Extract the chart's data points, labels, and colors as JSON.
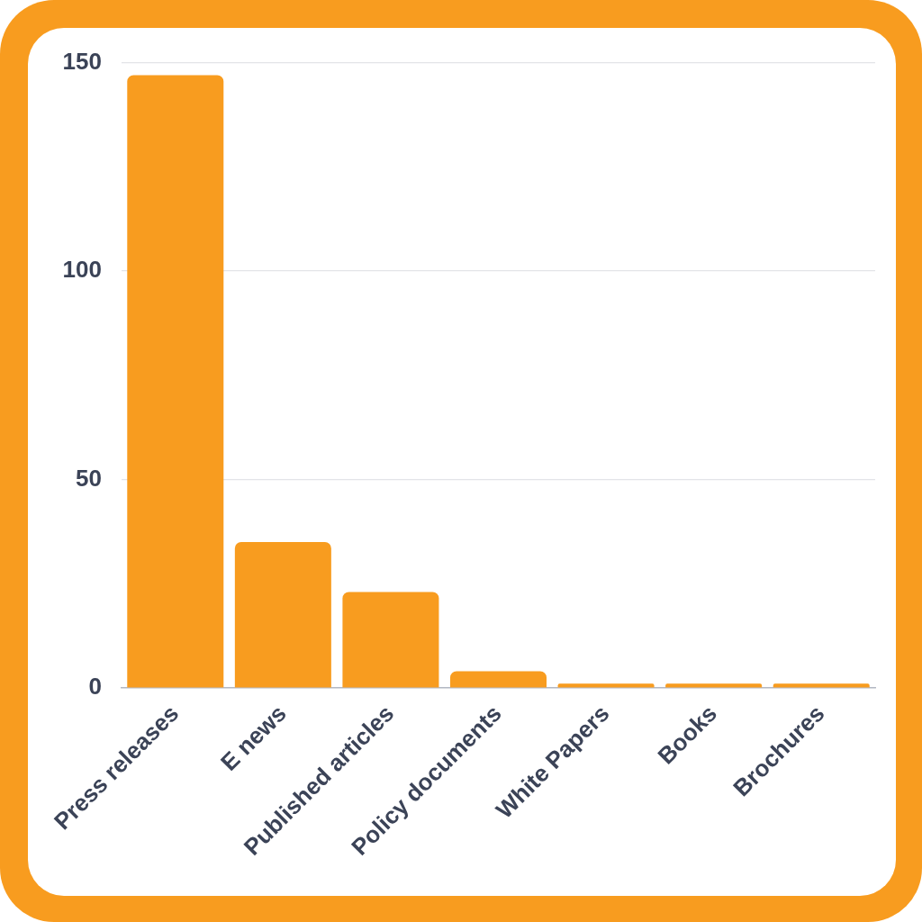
{
  "chart_data": {
    "type": "bar",
    "categories": [
      "Press releases",
      "E news",
      "Published articles",
      "Policy documents",
      "White Papers",
      "Books",
      "Brochures"
    ],
    "values": [
      147,
      35,
      23,
      4,
      1,
      1,
      1
    ],
    "color": "#f89c1f",
    "ylim": [
      0,
      150
    ],
    "yticks": [
      0,
      50,
      100,
      150
    ],
    "grid": "y",
    "legend": false
  }
}
